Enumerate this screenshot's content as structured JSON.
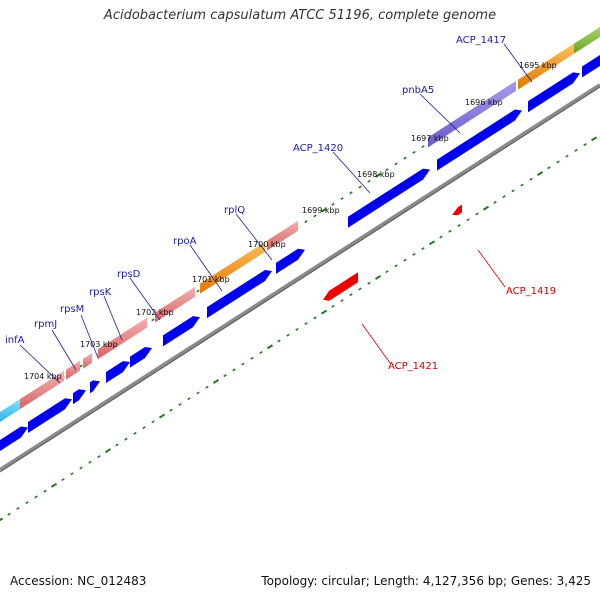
{
  "title": "Acidobacterium capsulatum ATCC 51196, complete genome",
  "footer": {
    "accession": "Accession: NC_012483",
    "summary": "Topology: circular; Length: 4,127,356 bp; Genes: 3,425"
  },
  "colors": {
    "forward_gene": "#0000ee",
    "reverse_gene": "#ee0000",
    "label_forward": "#1a1aa6",
    "label_reverse": "#cc0000",
    "backbone": "#888888",
    "tick": "#1e7a1e"
  },
  "scale_labels": [
    "1695 kbp",
    "1696 kbp",
    "1697 kbp",
    "1698 kbp",
    "1699 kbp",
    "1700 kbp",
    "1701 kbp",
    "1702 kbp",
    "1703 kbp",
    "1704 kbp"
  ],
  "gene_labels_forward": [
    "ACP_1417",
    "pnbA5",
    "ACP_1420",
    "rplQ",
    "rpoA",
    "rpsD",
    "rpsK",
    "rpsM",
    "rpmJ",
    "infA"
  ],
  "gene_labels_reverse": [
    "ACP_1419",
    "ACP_1421"
  ]
}
